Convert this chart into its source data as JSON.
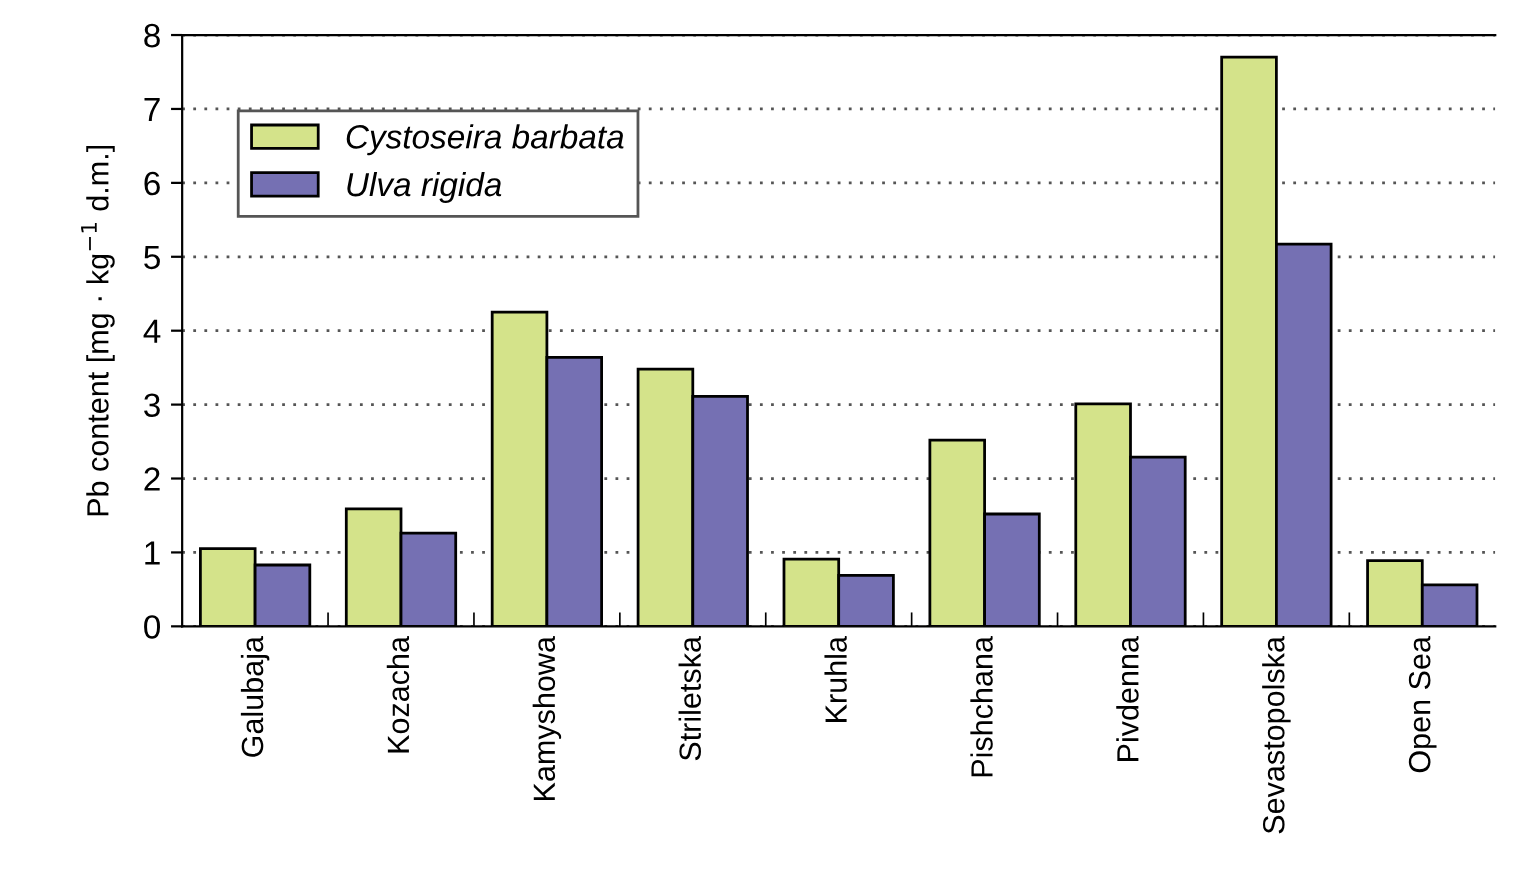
{
  "chart_data": {
    "type": "bar",
    "ylabel": "Pb content [mg · kg$^{−1}$ d.m.]",
    "categories": [
      "Galubaja",
      "Kozacha",
      "Kamyshowa",
      "Striletska",
      "Kruhla",
      "Pishchana",
      "Pivdenna",
      "Sevastopolska",
      "Open Sea"
    ],
    "series": [
      {
        "name": "Cystoseira barbata",
        "color": "#d4e38a",
        "values": [
          1.05,
          1.59,
          4.25,
          3.48,
          0.91,
          2.52,
          3.01,
          7.7,
          0.89
        ]
      },
      {
        "name": "Ulva rigida",
        "color": "#7570b3",
        "values": [
          0.83,
          1.26,
          3.64,
          3.11,
          0.69,
          1.52,
          2.29,
          5.17,
          0.56
        ]
      }
    ],
    "ylim": [
      0,
      8
    ],
    "yticks": [
      0,
      1,
      2,
      3,
      4,
      5,
      6,
      7,
      8
    ],
    "grid": "y",
    "legend": "top left"
  }
}
